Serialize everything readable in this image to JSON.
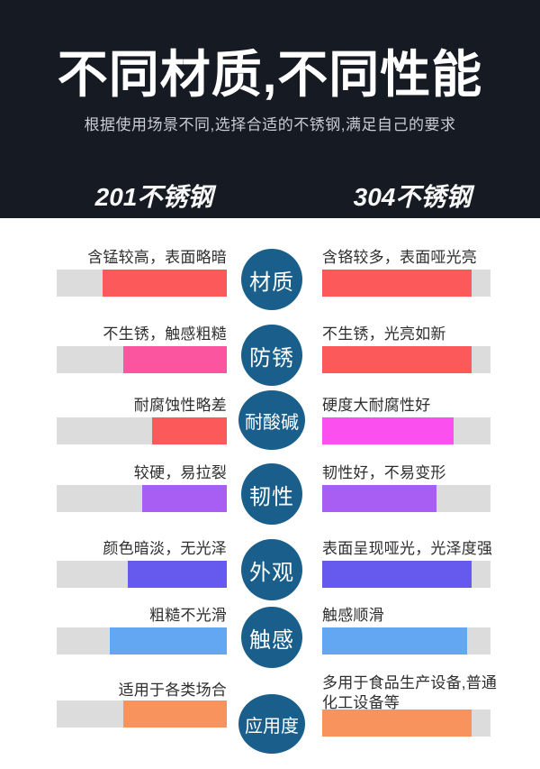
{
  "header": {
    "title": "不同材质,不同性能",
    "subtitle": "根据使用场景不同,选择合适的不锈钢,满足自己的要求",
    "column_left": "201不锈钢",
    "column_right": "304不锈钢",
    "bg_color": "#161a22"
  },
  "colors": {
    "badge_circle": "#1a5f8b",
    "bar_track": "#dcdcdc",
    "red": "#fc5a5a",
    "pink": "#fc55a0",
    "magenta": "#fc4ff0",
    "purple": "#a85ef2",
    "indigo": "#6659ee",
    "blue": "#63a6f2",
    "orange": "#f9935e"
  },
  "rows": [
    {
      "badge": "材质",
      "left": {
        "text": "含锰较高，表面略暗",
        "fill_color": "#fc5a5a",
        "fill_pct": 73
      },
      "right": {
        "text": "含铬较多，表面哑光亮",
        "fill_color": "#fc5a5a",
        "fill_pct": 89
      }
    },
    {
      "badge": "防锈",
      "left": {
        "text": "不生锈，触感粗糙",
        "fill_color": "#fc55a0",
        "fill_pct": 61
      },
      "right": {
        "text": "不生锈，光亮如新",
        "fill_color": "#fc5a5a",
        "fill_pct": 89
      }
    },
    {
      "badge": "耐酸碱",
      "left": {
        "text": "耐腐蚀性略差",
        "fill_color": "#fc5a5a",
        "fill_pct": 44
      },
      "right": {
        "text": "硬度大耐腐性好",
        "fill_color": "#fc4ff0",
        "fill_pct": 78
      }
    },
    {
      "badge": "韧性",
      "left": {
        "text": "较硬，易拉裂",
        "fill_color": "#a85ef2",
        "fill_pct": 50
      },
      "right": {
        "text": "韧性好，不易变形",
        "fill_color": "#a85ef2",
        "fill_pct": 68
      }
    },
    {
      "badge": "外观",
      "left": {
        "text": "颜色暗淡，无光泽",
        "fill_color": "#6659ee",
        "fill_pct": 58
      },
      "right": {
        "text": "表面呈现哑光，光泽度强",
        "fill_color": "#6659ee",
        "fill_pct": 89
      }
    },
    {
      "badge": "触感",
      "left": {
        "text": "粗糙不光滑",
        "fill_color": "#63a6f2",
        "fill_pct": 69
      },
      "right": {
        "text": "触感顺滑",
        "fill_color": "#63a6f2",
        "fill_pct": 86
      }
    },
    {
      "badge": "应用度",
      "left": {
        "text": "适用于各类场合",
        "fill_color": "#f9935e",
        "fill_pct": 61
      },
      "right": {
        "text": "多用于食品生产设备,普通\n化工设备等",
        "fill_color": "#f9935e",
        "fill_pct": 89
      }
    }
  ]
}
